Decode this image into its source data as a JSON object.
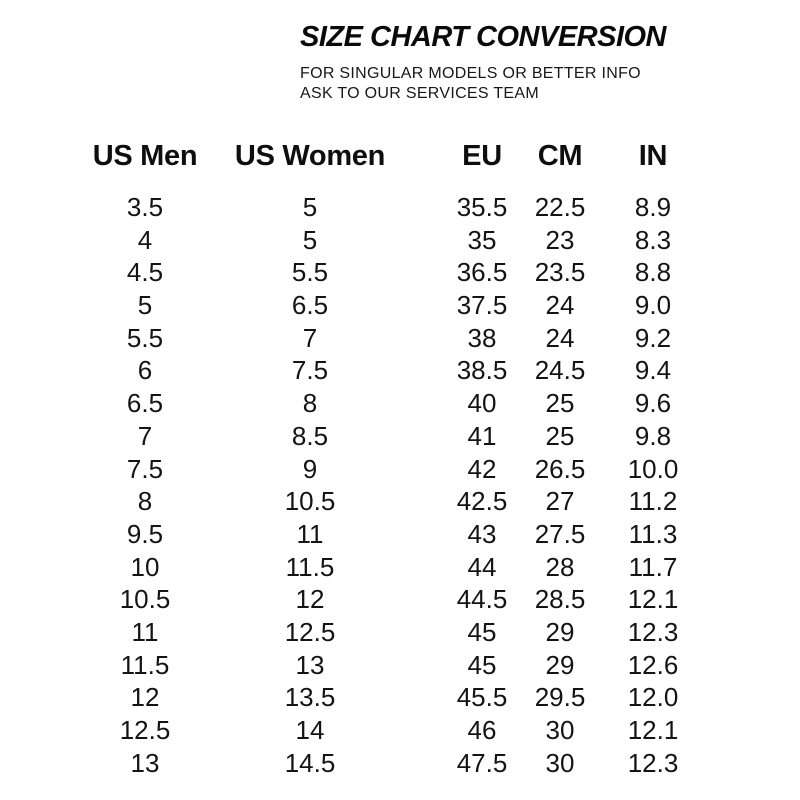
{
  "header": {
    "title": "SIZE CHART CONVERSION",
    "subtitle_line1": "FOR SINGULAR MODELS OR BETTER INFO",
    "subtitle_line2": "ASK TO OUR SERVICES TEAM"
  },
  "chart_data": {
    "type": "table",
    "title": "SIZE CHART CONVERSION",
    "columns": [
      "US Men",
      "US Women",
      "EU",
      "CM",
      "IN"
    ],
    "rows": [
      [
        "3.5",
        "5",
        "35.5",
        "22.5",
        "8.9"
      ],
      [
        "4",
        "5",
        "35",
        "23",
        "8.3"
      ],
      [
        "4.5",
        "5.5",
        "36.5",
        "23.5",
        "8.8"
      ],
      [
        "5",
        "6.5",
        "37.5",
        "24",
        "9.0"
      ],
      [
        "5.5",
        "7",
        "38",
        "24",
        "9.2"
      ],
      [
        "6",
        "7.5",
        "38.5",
        "24.5",
        "9.4"
      ],
      [
        "6.5",
        "8",
        "40",
        "25",
        "9.6"
      ],
      [
        "7",
        "8.5",
        "41",
        "25",
        "9.8"
      ],
      [
        "7.5",
        "9",
        "42",
        "26.5",
        "10.0"
      ],
      [
        "8",
        "10.5",
        "42.5",
        "27",
        "11.2"
      ],
      [
        "9.5",
        "11",
        "43",
        "27.5",
        "11.3"
      ],
      [
        "10",
        "11.5",
        "44",
        "28",
        "11.7"
      ],
      [
        "10.5",
        "12",
        "44.5",
        "28.5",
        "12.1"
      ],
      [
        "11",
        "12.5",
        "45",
        "29",
        "12.3"
      ],
      [
        "11.5",
        "13",
        "45",
        "29",
        "12.6"
      ],
      [
        "12",
        "13.5",
        "45.5",
        "29.5",
        "12.0"
      ],
      [
        "12.5",
        "14",
        "46",
        "30",
        "12.1"
      ],
      [
        "13",
        "14.5",
        "47.5",
        "30",
        "12.3"
      ]
    ]
  },
  "colors": {
    "background": "#ffffff",
    "text": "#141414",
    "title": "#0a0a0a"
  }
}
